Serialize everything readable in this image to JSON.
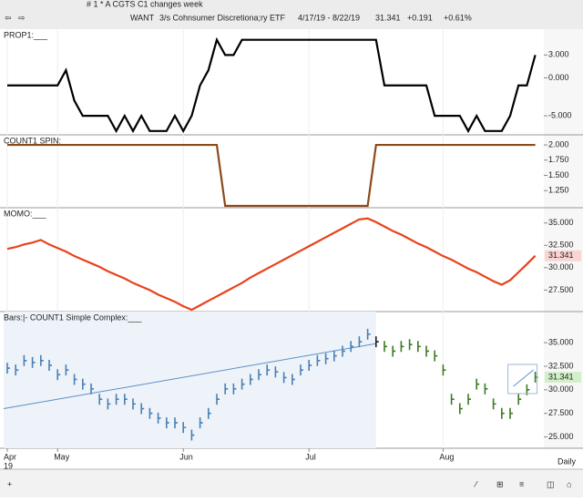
{
  "window": {
    "title": "# 1 * A CGTS  C1 changes week",
    "symbol": "WANT",
    "name": "3/s Cohnsumer Discretiona;ry ETF",
    "range": "4/17/19 - 8/22/19",
    "last": "31.341",
    "change": "+0.191",
    "change_pct": "+0.61%"
  },
  "footer": {
    "interval": "Daily"
  },
  "chart_data": [
    {
      "type": "line",
      "label": "PROP1:___",
      "color": "#000000",
      "ylim": [
        -7.5,
        6.4
      ],
      "yticks": [
        {
          "value": 3,
          "label": "3.000"
        },
        {
          "value": 0,
          "label": "0.000"
        },
        {
          "value": -5,
          "label": "-5.000"
        }
      ],
      "values": [
        -1,
        -1,
        -1,
        -1,
        -1,
        -1,
        -1,
        1,
        -3,
        -5,
        -5,
        -5,
        -5,
        -7,
        -5,
        -7,
        -5,
        -7,
        -7,
        -7,
        -5,
        -7,
        -5,
        -1,
        1,
        5,
        3,
        3,
        5,
        5,
        5,
        5,
        5,
        5,
        5,
        5,
        5,
        5,
        5,
        5,
        5,
        5,
        5,
        5,
        5,
        -1,
        -1,
        -1,
        -1,
        -1,
        -1,
        -5,
        -5,
        -5,
        -5,
        -7,
        -5,
        -7,
        -7,
        -7,
        -5,
        -1,
        -1,
        3
      ]
    },
    {
      "type": "line",
      "label": "COUNT1 SPIN:___",
      "color": "#8b4a1a",
      "ylim": [
        0.97,
        2.165
      ],
      "yticks": [
        {
          "value": 2,
          "label": "2.000"
        },
        {
          "value": 1.75,
          "label": "1.750"
        },
        {
          "value": 1.5,
          "label": "1.500"
        },
        {
          "value": 1.25,
          "label": "1.250"
        }
      ],
      "values": [
        2,
        2,
        2,
        2,
        2,
        2,
        2,
        2,
        2,
        2,
        2,
        2,
        2,
        2,
        2,
        2,
        2,
        2,
        2,
        2,
        2,
        2,
        2,
        2,
        2,
        2,
        1,
        1,
        1,
        1,
        1,
        1,
        1,
        1,
        1,
        1,
        1,
        1,
        1,
        1,
        1,
        1,
        1,
        1,
        2,
        2,
        2,
        2,
        2,
        2,
        2,
        2,
        2,
        2,
        2,
        2,
        2,
        2,
        2,
        2,
        2,
        2,
        2,
        2
      ]
    },
    {
      "type": "line",
      "label": "MOMO:___",
      "color": "#e8421c",
      "ylim": [
        25.1,
        36.7
      ],
      "last_value": 31.341,
      "last_color": "#d9302a",
      "last_bg": "#f9d4d2",
      "yticks": [
        {
          "value": 35,
          "label": "35.000"
        },
        {
          "value": 32.5,
          "label": "32.500"
        },
        {
          "value": 30,
          "label": "30.000"
        },
        {
          "value": 27.5,
          "label": "27.500"
        }
      ],
      "values": [
        32.1,
        32.3,
        32.6,
        32.8,
        33.1,
        32.6,
        32.2,
        31.8,
        31.3,
        30.9,
        30.5,
        30.1,
        29.6,
        29.2,
        28.8,
        28.3,
        27.9,
        27.5,
        27.0,
        26.6,
        26.2,
        25.7,
        25.3,
        25.8,
        26.3,
        26.8,
        27.3,
        27.8,
        28.3,
        28.9,
        29.4,
        29.9,
        30.4,
        30.9,
        31.4,
        31.9,
        32.4,
        32.9,
        33.4,
        33.9,
        34.4,
        34.9,
        35.4,
        35.5,
        35.1,
        34.6,
        34.1,
        33.7,
        33.2,
        32.7,
        32.3,
        31.8,
        31.3,
        30.9,
        30.4,
        29.9,
        29.5,
        29.0,
        28.5,
        28.1,
        28.6,
        29.5,
        30.4,
        31.341
      ]
    },
    {
      "type": "tick_bar",
      "label": "Bars:|-  COUNT1 Simple Complex:___",
      "ylim": [
        23.8,
        38.3
      ],
      "last_value": 31.341,
      "last_color": "#2e7d1e",
      "last_bg": "#d3efc9",
      "yticks": [
        {
          "value": 35,
          "label": "35.000"
        },
        {
          "value": 32.5,
          "label": "32.500"
        },
        {
          "value": 30,
          "label": "30.000"
        },
        {
          "value": 27.5,
          "label": "27.500"
        },
        {
          "value": 25,
          "label": "25.000"
        }
      ],
      "categories": [
        "Apr",
        null,
        null,
        null,
        null,
        null,
        "May",
        null,
        null,
        null,
        null,
        null,
        null,
        null,
        null,
        null,
        null,
        null,
        null,
        null,
        null,
        "Jun",
        null,
        null,
        null,
        null,
        null,
        null,
        null,
        null,
        null,
        null,
        null,
        null,
        null,
        null,
        "Jul",
        null,
        null,
        null,
        null,
        null,
        null,
        null,
        null,
        null,
        null,
        null,
        null,
        null,
        null,
        null,
        "Aug",
        null,
        null,
        null,
        null,
        null,
        null,
        null,
        null,
        null,
        null,
        null
      ],
      "year": "19",
      "colors": [
        "#4a7fb5",
        "#4a7fb5",
        "#4a7fb5",
        "#4a7fb5",
        "#4a7fb5",
        "#4a7fb5",
        "#4a7fb5",
        "#4a7fb5",
        "#4a7fb5",
        "#4a7fb5",
        "#4a7fb5",
        "#4a7fb5",
        "#4a7fb5",
        "#4a7fb5",
        "#4a7fb5",
        "#4a7fb5",
        "#4a7fb5",
        "#4a7fb5",
        "#4a7fb5",
        "#4a7fb5",
        "#4a7fb5",
        "#4a7fb5",
        "#4a7fb5",
        "#4a7fb5",
        "#4a7fb5",
        "#4a7fb5",
        "#4a7fb5",
        "#4a7fb5",
        "#4a7fb5",
        "#4a7fb5",
        "#4a7fb5",
        "#4a7fb5",
        "#4a7fb5",
        "#4a7fb5",
        "#4a7fb5",
        "#4a7fb5",
        "#4a7fb5",
        "#4a7fb5",
        "#4a7fb5",
        "#4a7fb5",
        "#4a7fb5",
        "#4a7fb5",
        "#4a7fb5",
        "#4a7fb5",
        "#222222",
        "#3d7a22",
        "#3d7a22",
        "#3d7a22",
        "#3d7a22",
        "#3d7a22",
        "#3d7a22",
        "#3d7a22",
        "#3d7a22",
        "#3d7a22",
        "#3d7a22",
        "#3d7a22",
        "#3d7a22",
        "#3d7a22",
        "#3d7a22",
        "#3d7a22",
        "#3d7a22",
        "#3d7a22",
        "#3d7a22",
        "#3d7a22"
      ],
      "values": [
        32.3,
        32.1,
        33.1,
        32.9,
        33.1,
        32.6,
        31.6,
        32.1,
        31.1,
        30.6,
        30.1,
        29.0,
        28.5,
        29.0,
        29.0,
        28.5,
        28.0,
        27.5,
        27.0,
        26.5,
        26.5,
        26.0,
        25.2,
        26.5,
        27.5,
        29.0,
        30.1,
        30.1,
        30.6,
        31.1,
        31.6,
        32.1,
        31.9,
        31.3,
        31.1,
        32.1,
        32.6,
        33.1,
        33.3,
        33.6,
        34.1,
        34.6,
        35.1,
        35.9,
        35.1,
        34.6,
        34.1,
        34.6,
        34.8,
        34.6,
        34.1,
        33.6,
        32.1,
        29.0,
        28.0,
        29.0,
        30.6,
        30.1,
        28.5,
        27.5,
        27.5,
        29.0,
        30.0,
        31.341
      ],
      "trend": {
        "x": [
          0,
          44
        ],
        "values": [
          28.0,
          34.9
        ],
        "color": "#5b8fc9"
      }
    }
  ]
}
